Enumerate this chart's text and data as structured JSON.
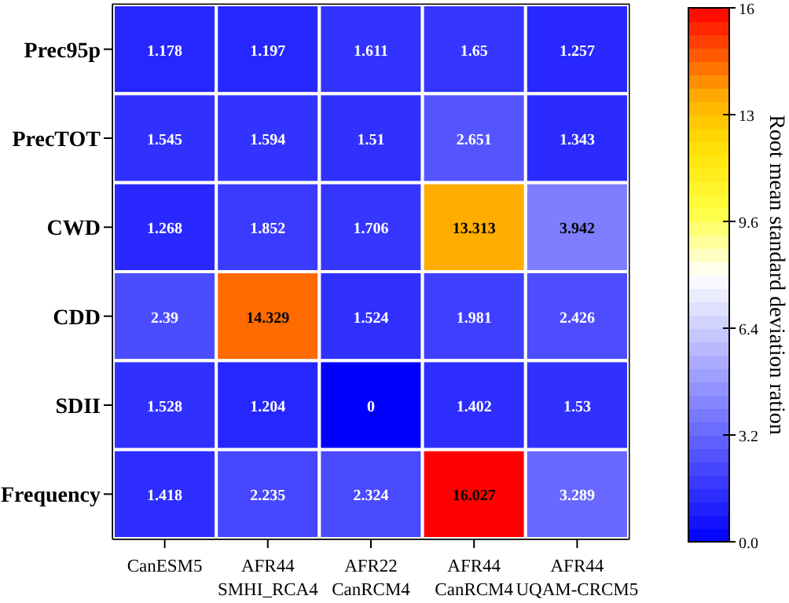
{
  "chart_data": {
    "type": "heatmap",
    "categories": [
      "CanESM5",
      "AFR44\nSMHI_RCA4",
      "AFR22\nCanRCM4",
      "AFR44\nCanRCM4",
      "AFR44\nUQAM-CRCM5"
    ],
    "y_categories": [
      "Prec95p",
      "PrecTOT",
      "CWD",
      "CDD",
      "SDII",
      "Frequency"
    ],
    "cells": [
      [
        1.178,
        1.197,
        1.611,
        1.65,
        1.257
      ],
      [
        1.545,
        1.594,
        1.51,
        2.651,
        1.343
      ],
      [
        1.268,
        1.852,
        1.706,
        13.313,
        3.942
      ],
      [
        2.39,
        14.329,
        1.524,
        1.981,
        2.426
      ],
      [
        1.528,
        1.204,
        0,
        1.402,
        1.53
      ],
      [
        1.418,
        2.235,
        2.324,
        16.027,
        3.289
      ]
    ],
    "data_labels": true,
    "clim": [
      0,
      16
    ],
    "cticks": [
      {
        "value": 0,
        "label": "0.0"
      },
      3.2,
      6.4,
      9.6,
      {
        "value": 12.8,
        "label": "13"
      },
      16
    ],
    "clabel": "Root mean standard deviation ration"
  }
}
